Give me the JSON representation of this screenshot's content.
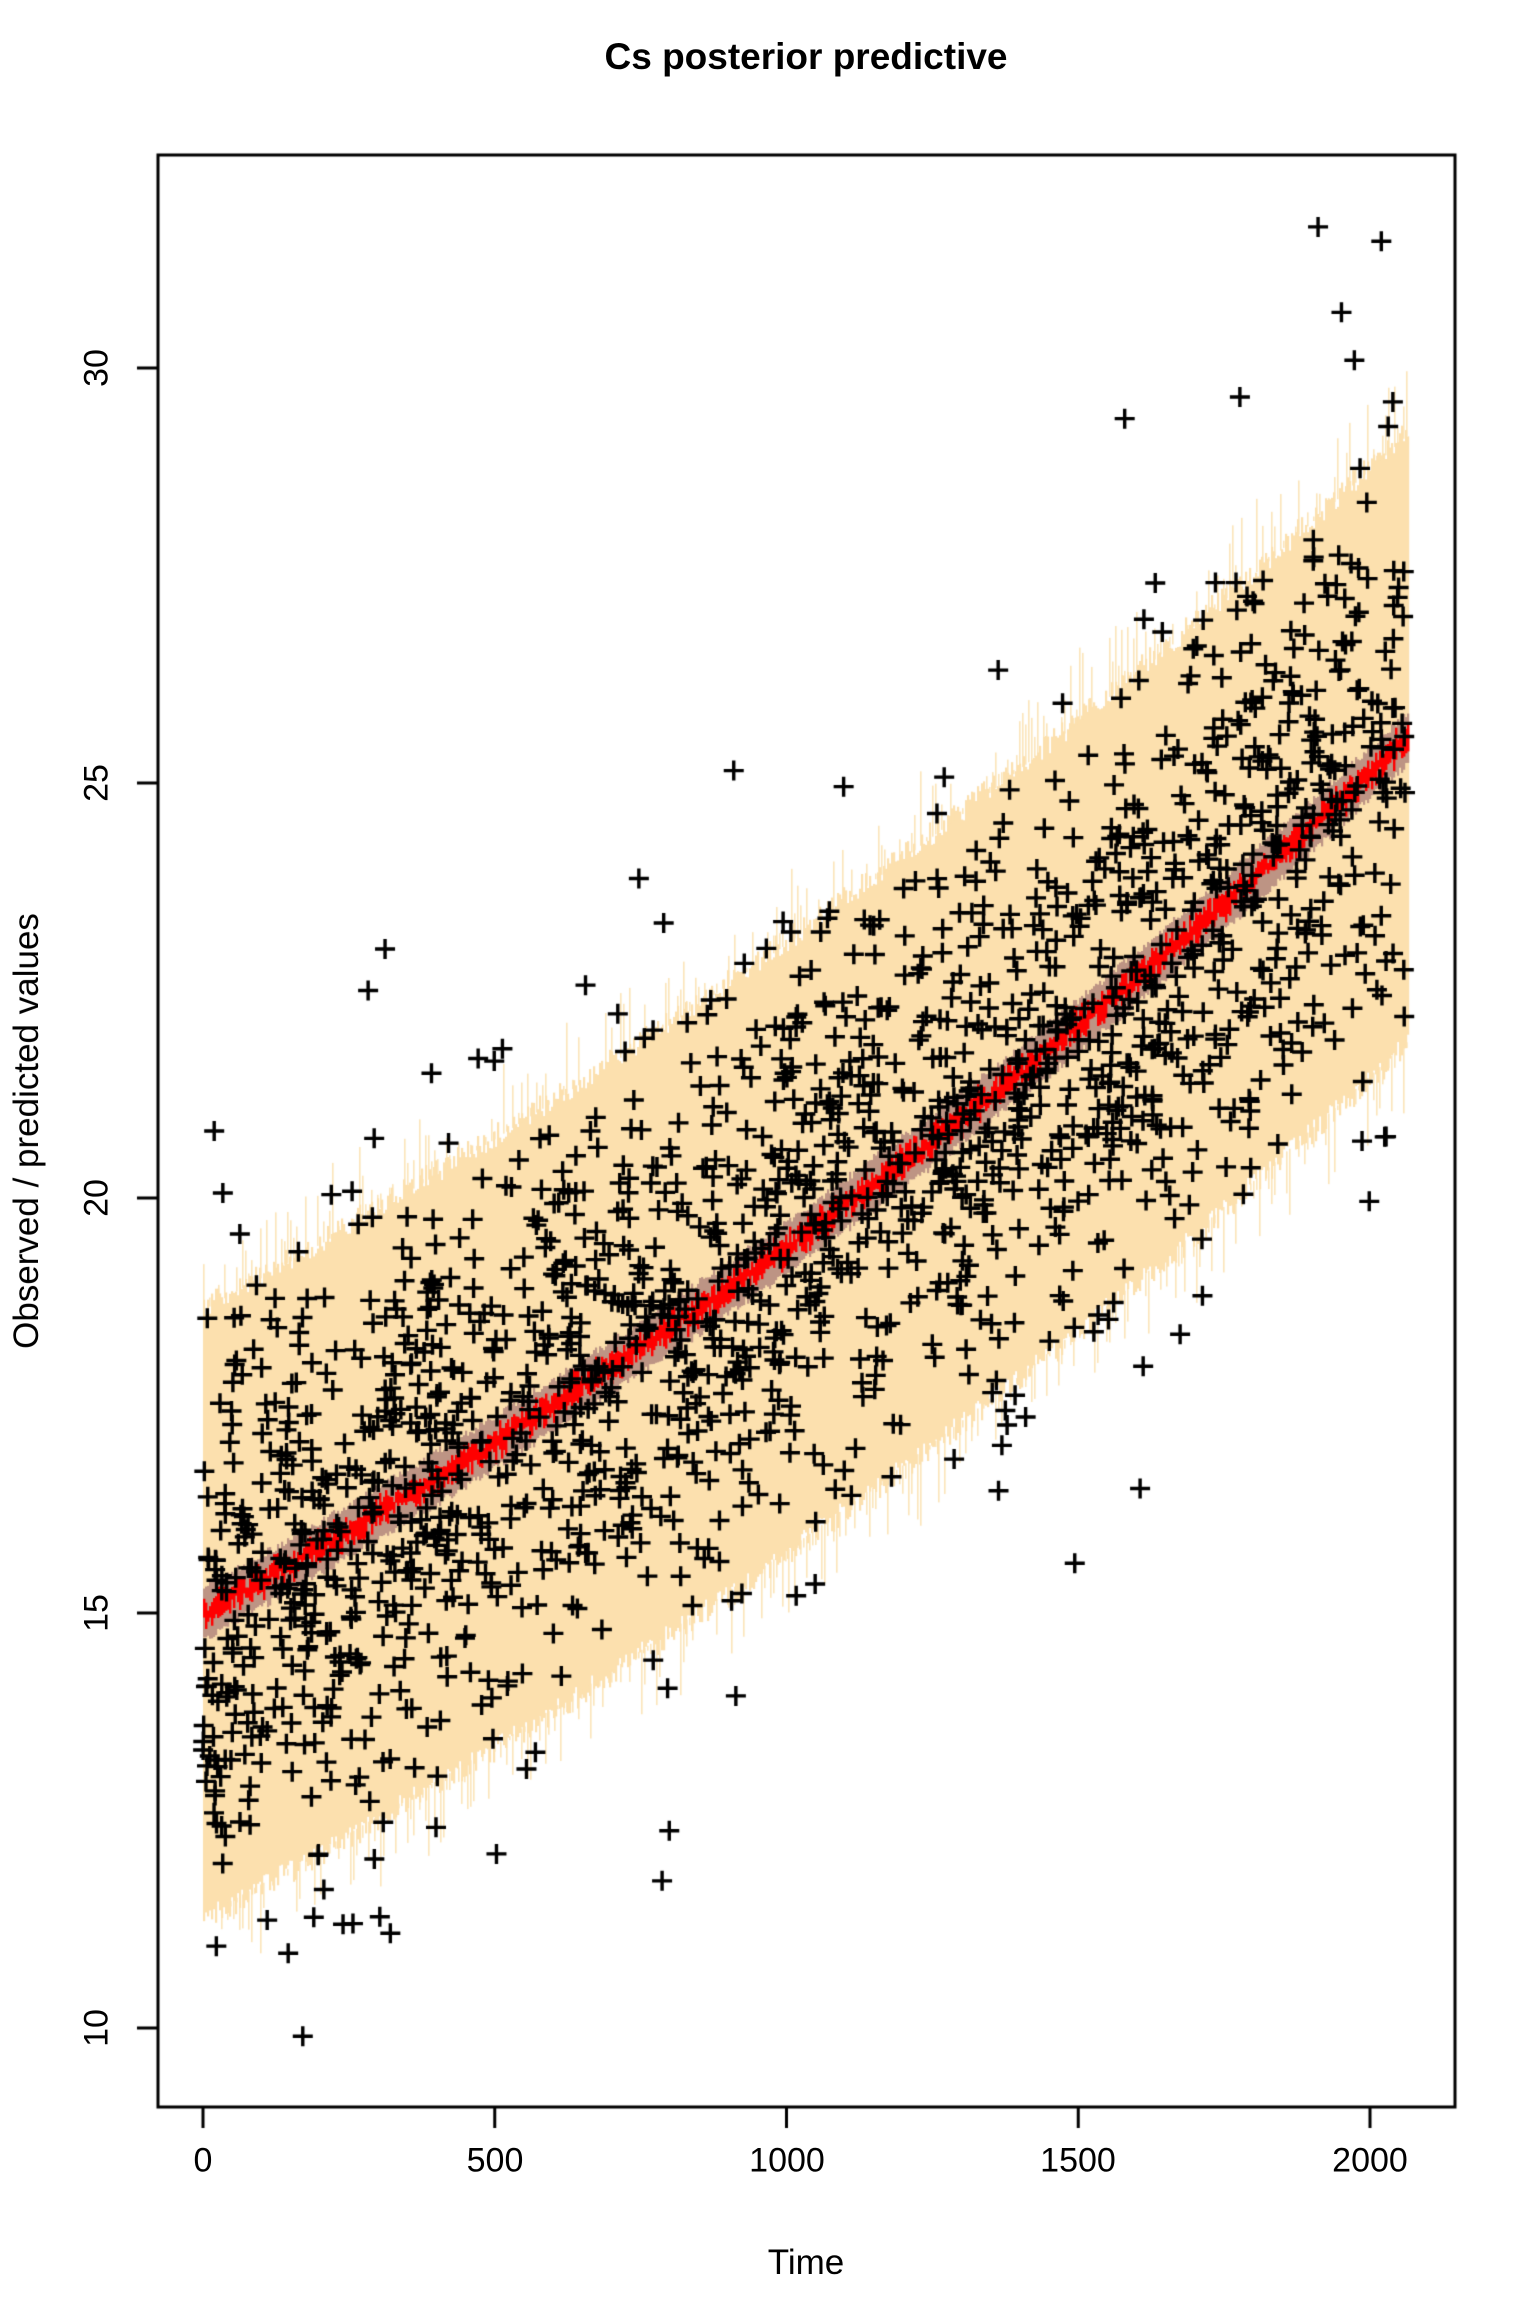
{
  "title": "Cs posterior predictive",
  "axes": {
    "x_tick_labels": [
      "0",
      "500",
      "1000",
      "1500",
      "2000"
    ],
    "y_tick_labels": [
      "10",
      "15",
      "20",
      "25",
      "30"
    ]
  },
  "chart_data": {
    "type": "scatter",
    "title": "Cs posterior predictive",
    "xlabel": "Time",
    "ylabel": "Observed / predicted values",
    "x_ticks": [
      0,
      500,
      1000,
      1500,
      2000
    ],
    "y_ticks": [
      10,
      15,
      20,
      25,
      30
    ],
    "xlim": [
      -82,
      2147
    ],
    "ylim": [
      9.0,
      32.65
    ],
    "grid": false,
    "legend": "none",
    "colors": {
      "outer_band": "#FCE0AE",
      "inner_band": "#BD9484",
      "mean_line": "#FF0000",
      "points": "#000000",
      "axes": "#000000"
    },
    "mean_curve": {
      "model": "y = 15 * exp(0.000258 * x)",
      "x": [
        0,
        100,
        200,
        300,
        400,
        500,
        600,
        700,
        800,
        900,
        1000,
        1100,
        1200,
        1300,
        1400,
        1500,
        1600,
        1700,
        1800,
        1900,
        2000,
        2065
      ],
      "y": [
        15.0,
        15.39,
        15.79,
        16.21,
        16.63,
        17.06,
        17.51,
        17.97,
        18.44,
        18.92,
        19.41,
        19.92,
        20.44,
        20.97,
        21.52,
        22.08,
        22.66,
        23.25,
        23.86,
        24.49,
        25.13,
        25.55
      ],
      "jitter": 0.14
    },
    "outer_band": {
      "description": "posterior predictive interval, mean +/- half_width, ragged vertical-line edges",
      "half_width": 3.7,
      "edge_jitter": 0.3,
      "spike_max": 0.85
    },
    "inner_band": {
      "description": "posterior mean credible band",
      "half_width": 0.3
    },
    "scatter": {
      "marker": "+",
      "n": 1800,
      "x_min": 0,
      "x_max": 2060,
      "residual_sd": 1.85,
      "seed": 20240613
    },
    "outliers": [
      [
        1911,
        31.7
      ],
      [
        1777,
        29.65
      ],
      [
        171,
        9.9
      ],
      [
        146,
        10.9
      ],
      [
        110,
        11.3
      ],
      [
        240,
        11.25
      ],
      [
        303,
        11.34
      ],
      [
        312,
        23.0
      ],
      [
        283,
        22.5
      ],
      [
        34,
        20.06
      ],
      [
        1606,
        16.5
      ],
      [
        1494,
        15.6
      ]
    ]
  }
}
